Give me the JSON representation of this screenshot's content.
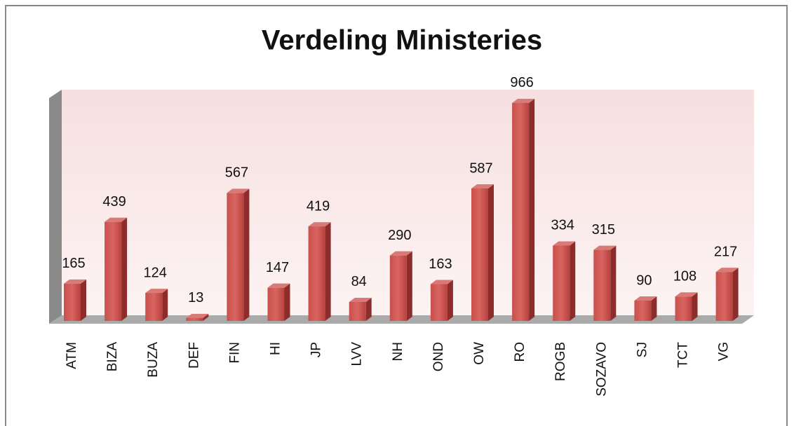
{
  "chart_data": {
    "type": "bar",
    "title": "Verdeling Ministeries",
    "categories": [
      "ATM",
      "BIZA",
      "BUZA",
      "DEF",
      "FIN",
      "HI",
      "JP",
      "LVV",
      "NH",
      "OND",
      "OW",
      "RO",
      "ROGB",
      "SOZAVO",
      "SJ",
      "TCT",
      "VG"
    ],
    "values": [
      165,
      439,
      124,
      13,
      567,
      147,
      419,
      84,
      290,
      163,
      587,
      966,
      334,
      315,
      90,
      108,
      217
    ],
    "color": "#c0504d",
    "ylim": [
      0,
      1000
    ]
  }
}
